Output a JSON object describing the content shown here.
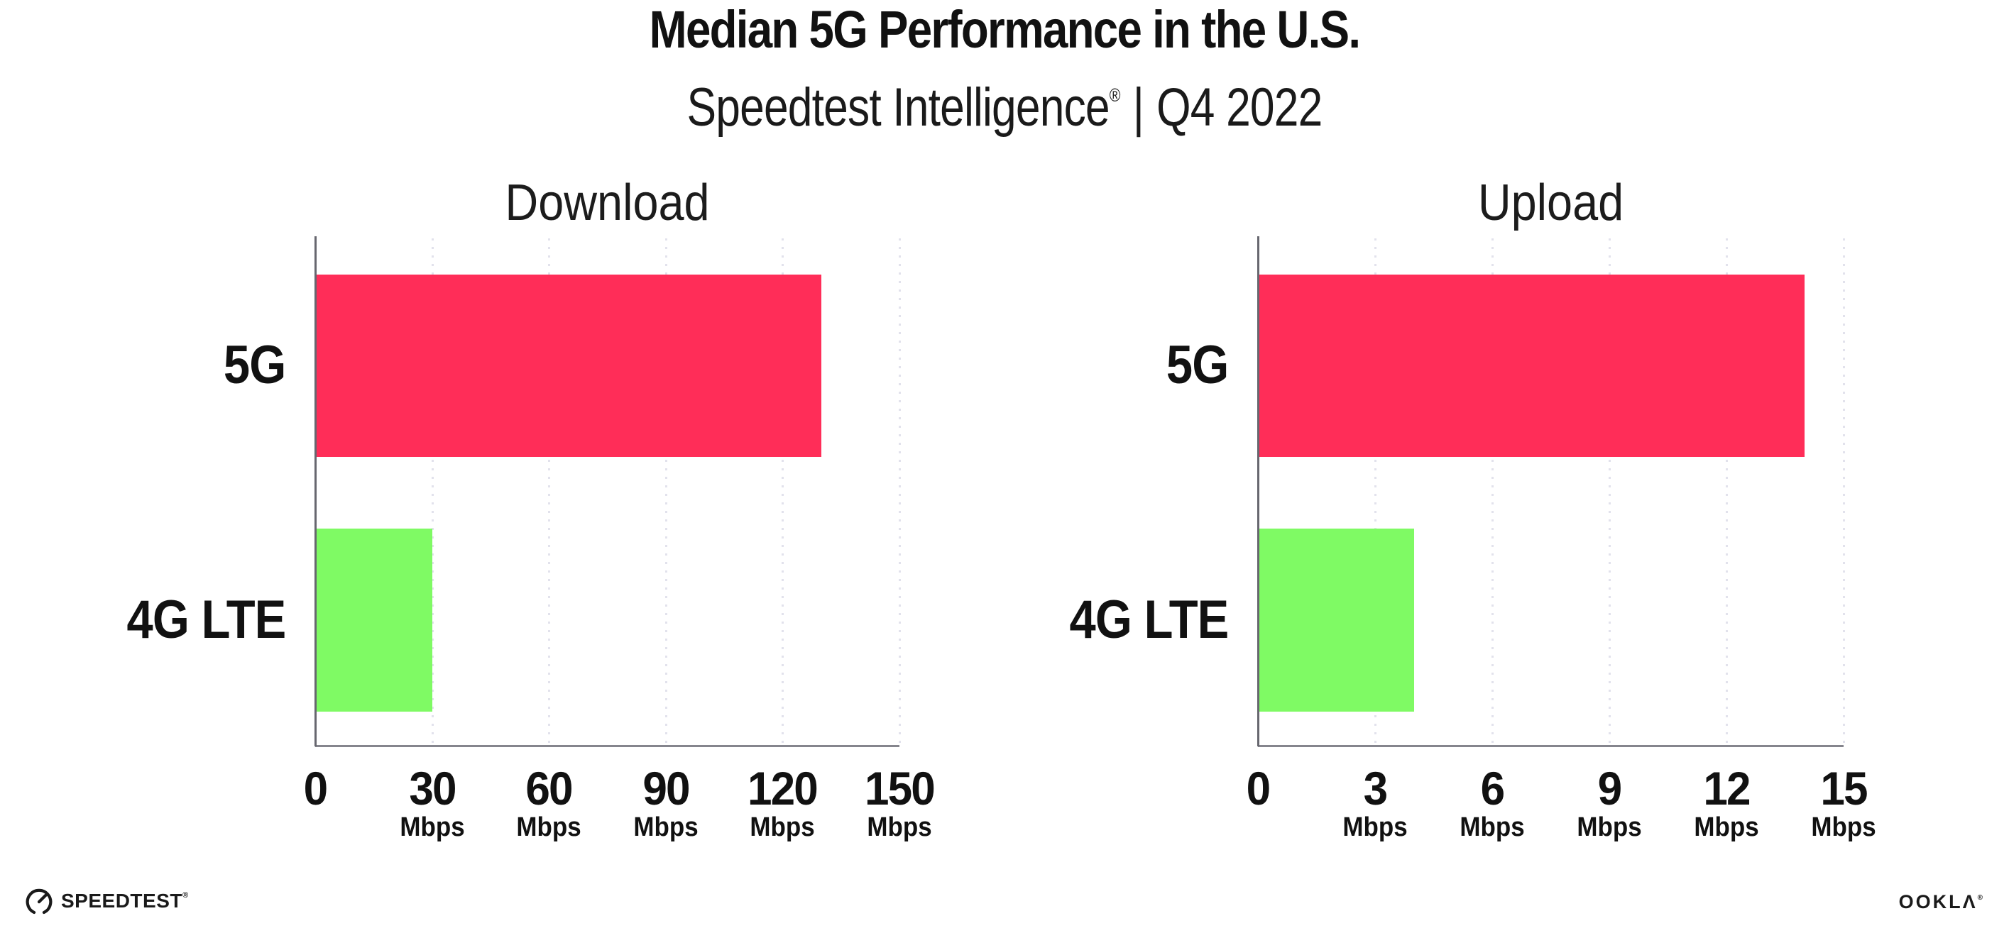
{
  "header": {
    "title": "Median 5G Performance in the U.S.",
    "subtitle_brand": "Speedtest Intelligence",
    "subtitle_reg": "®",
    "subtitle_divider": "|",
    "subtitle_period": "Q4 2022"
  },
  "chart_data": [
    {
      "type": "bar",
      "orientation": "horizontal",
      "title": "Download",
      "categories": [
        "5G",
        "4G LTE"
      ],
      "values": [
        130,
        30
      ],
      "values_unit": "Mbps",
      "xlim": [
        0,
        150
      ],
      "ticks": [
        0,
        30,
        60,
        90,
        120,
        150
      ],
      "tick_unit": "Mbps",
      "bar_colors": [
        "#FF2D58",
        "#7FFA64"
      ],
      "grid": "dotted-vertical",
      "legend": "none"
    },
    {
      "type": "bar",
      "orientation": "horizontal",
      "title": "Upload",
      "categories": [
        "5G",
        "4G LTE"
      ],
      "values": [
        14,
        4
      ],
      "values_unit": "Mbps",
      "xlim": [
        0,
        15
      ],
      "ticks": [
        0,
        3,
        6,
        9,
        12,
        15
      ],
      "tick_unit": "Mbps",
      "bar_colors": [
        "#FF2D58",
        "#7FFA64"
      ],
      "grid": "dotted-vertical",
      "legend": "none"
    }
  ],
  "footer": {
    "speedtest_label": "SPEEDTEST",
    "speedtest_reg": "®",
    "ookla_label": "OOKLΛ",
    "ookla_reg": "®"
  },
  "colors": {
    "bar_5g": "#FF2D58",
    "bar_4g_lte": "#7FFA64",
    "gridline": "#E2E2EC",
    "x_axis_line": "#85858D",
    "y_axis_line": "#67676F",
    "text": "#111111"
  }
}
